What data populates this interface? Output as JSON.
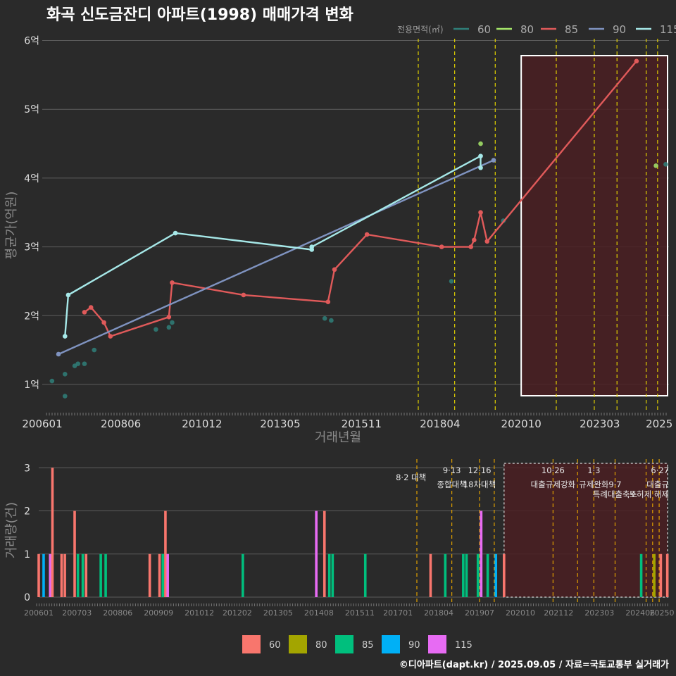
{
  "title": "화곡 신도금잔디 아파트(1998) 매매가격 변화",
  "credit": "©디아파트(dapt.kr) / 2025.09.05 / 자료=국토교통부 실거래가",
  "colors": {
    "bg": "#2a2a2a",
    "grid": "#5c5c5c",
    "policy_line": "#e0d000",
    "shade_fill": "#4a1f22",
    "sz60": "#2f7f79",
    "sz80": "#a6e86a",
    "sz85": "#e05a5a",
    "sz90": "#7f93c0",
    "sz115": "#a6e8e8",
    "bar60": "#f8766d",
    "bar80": "#a3a500",
    "bar85": "#00bf7d",
    "bar90": "#00b0f6",
    "bar115": "#e76bf3"
  },
  "chart_data": [
    {
      "type": "line",
      "title": "화곡 신도금잔디 아파트(1998) 매매가격 변화",
      "xlabel": "거래년월",
      "ylabel": "평균가(억원)",
      "xlim": [
        2006.0,
        2025.3
      ],
      "ylim": [
        0.6,
        6.2
      ],
      "x_ticks": [
        {
          "label": "200601",
          "x": 2006.0
        },
        {
          "label": "200806",
          "x": 2008.42
        },
        {
          "label": "201012",
          "x": 2010.92
        },
        {
          "label": "201305",
          "x": 2013.33
        },
        {
          "label": "201511",
          "x": 2015.83
        },
        {
          "label": "201804",
          "x": 2018.25
        },
        {
          "label": "202010",
          "x": 2020.75
        },
        {
          "label": "202303",
          "x": 2023.17
        },
        {
          "label": "2025",
          "x": 2025.0
        }
      ],
      "y_ticks": [
        {
          "label": "1억",
          "y": 1
        },
        {
          "label": "2억",
          "y": 2
        },
        {
          "label": "3억",
          "y": 3
        },
        {
          "label": "4억",
          "y": 4
        },
        {
          "label": "5억",
          "y": 5
        },
        {
          "label": "6억",
          "y": 6
        }
      ],
      "legend": {
        "title": "전용면적(㎡)",
        "position": "top-right",
        "entries": [
          "60",
          "80",
          "85",
          "90",
          "115"
        ]
      },
      "series": [
        {
          "name": "60",
          "color_key": "sz60",
          "mode": "points",
          "points": [
            [
              2006.3,
              1.05
            ],
            [
              2006.7,
              0.83
            ],
            [
              2006.7,
              1.15
            ],
            [
              2007.0,
              1.27
            ],
            [
              2007.1,
              1.3
            ],
            [
              2007.3,
              1.3
            ],
            [
              2007.6,
              1.5
            ],
            [
              2009.5,
              1.8
            ],
            [
              2009.9,
              1.83
            ],
            [
              2010.0,
              1.9
            ],
            [
              2014.7,
              1.96
            ],
            [
              2014.9,
              1.93
            ],
            [
              2018.6,
              2.5
            ],
            [
              2020.2,
              3.38
            ],
            [
              2025.2,
              4.2
            ]
          ]
        },
        {
          "name": "80",
          "color_key": "sz80",
          "mode": "points",
          "points": [
            [
              2019.5,
              4.5
            ],
            [
              2024.9,
              4.18
            ]
          ]
        },
        {
          "name": "85",
          "color_key": "sz85",
          "mode": "line",
          "points": [
            [
              2007.3,
              2.05
            ],
            [
              2007.5,
              2.12
            ],
            [
              2007.9,
              1.9
            ],
            [
              2008.1,
              1.7
            ],
            [
              2009.9,
              1.98
            ],
            [
              2010.0,
              2.48
            ],
            [
              2012.2,
              2.3
            ],
            [
              2014.8,
              2.2
            ],
            [
              2015.0,
              2.67
            ],
            [
              2016.0,
              3.18
            ],
            [
              2018.3,
              3.0
            ],
            [
              2019.2,
              3.0
            ],
            [
              2019.3,
              3.1
            ],
            [
              2019.5,
              3.5
            ],
            [
              2019.7,
              3.08
            ],
            [
              2024.3,
              5.7
            ]
          ]
        },
        {
          "name": "90",
          "color_key": "sz90",
          "mode": "line",
          "points": [
            [
              2006.5,
              1.44
            ],
            [
              2019.9,
              4.26
            ]
          ]
        },
        {
          "name": "115",
          "color_key": "sz115",
          "mode": "line",
          "points": [
            [
              2006.7,
              1.7
            ],
            [
              2006.8,
              2.3
            ],
            [
              2010.1,
              3.2
            ],
            [
              2014.3,
              2.96
            ],
            [
              2014.3,
              3.0
            ],
            [
              2019.5,
              4.32
            ],
            [
              2019.5,
              4.15
            ]
          ]
        }
      ],
      "policy_lines_x": [
        2017.58,
        2018.7,
        2019.95,
        2021.83,
        2023.0,
        2023.7,
        2024.6,
        2024.95
      ],
      "shaded_range_x": [
        2020.75,
        2025.3
      ]
    },
    {
      "type": "bar",
      "ylabel": "거래량(건)",
      "xlim": [
        2006.0,
        2025.3
      ],
      "ylim": [
        0,
        3.2
      ],
      "x_ticks": [
        {
          "label": "200601",
          "x": 2006.0
        },
        {
          "label": "200703",
          "x": 2007.17
        },
        {
          "label": "200806",
          "x": 2008.42
        },
        {
          "label": "200909",
          "x": 2009.67
        },
        {
          "label": "201012",
          "x": 2010.92
        },
        {
          "label": "201202",
          "x": 2012.08
        },
        {
          "label": "201305",
          "x": 2013.33
        },
        {
          "label": "201408",
          "x": 2014.58
        },
        {
          "label": "201511",
          "x": 2015.83
        },
        {
          "label": "201701",
          "x": 2017.0
        },
        {
          "label": "201804",
          "x": 2018.25
        },
        {
          "label": "201907",
          "x": 2019.5
        },
        {
          "label": "202010",
          "x": 2020.75
        },
        {
          "label": "202112",
          "x": 2021.92
        },
        {
          "label": "202303",
          "x": 2023.17
        },
        {
          "label": "202406",
          "x": 2024.42
        },
        {
          "label": "20250",
          "x": 2025.3
        }
      ],
      "y_ticks": [
        {
          "label": "0",
          "y": 0
        },
        {
          "label": "1",
          "y": 1
        },
        {
          "label": "2",
          "y": 2
        },
        {
          "label": "3",
          "y": 3
        }
      ],
      "legend": {
        "position": "bottom",
        "entries": [
          "60",
          "80",
          "85",
          "90",
          "115"
        ]
      },
      "bars": [
        {
          "x": 2006.0,
          "size": "60",
          "count": 1
        },
        {
          "x": 2006.15,
          "size": "90",
          "count": 1
        },
        {
          "x": 2006.35,
          "size": "115",
          "count": 1
        },
        {
          "x": 2006.42,
          "size": "60",
          "count": 3
        },
        {
          "x": 2006.7,
          "size": "60",
          "count": 1
        },
        {
          "x": 2006.8,
          "size": "60",
          "count": 1
        },
        {
          "x": 2007.1,
          "size": "60",
          "count": 2
        },
        {
          "x": 2007.2,
          "size": "85",
          "count": 1
        },
        {
          "x": 2007.35,
          "size": "85",
          "count": 1
        },
        {
          "x": 2007.45,
          "size": "60",
          "count": 1
        },
        {
          "x": 2007.9,
          "size": "85",
          "count": 1
        },
        {
          "x": 2008.05,
          "size": "85",
          "count": 1
        },
        {
          "x": 2009.4,
          "size": "60",
          "count": 1
        },
        {
          "x": 2009.7,
          "size": "60",
          "count": 1
        },
        {
          "x": 2009.8,
          "size": "85",
          "count": 1
        },
        {
          "x": 2009.88,
          "size": "60",
          "count": 2
        },
        {
          "x": 2009.95,
          "size": "115",
          "count": 1
        },
        {
          "x": 2012.25,
          "size": "85",
          "count": 1
        },
        {
          "x": 2014.5,
          "size": "115",
          "count": 2
        },
        {
          "x": 2014.75,
          "size": "60",
          "count": 2
        },
        {
          "x": 2014.9,
          "size": "85",
          "count": 1
        },
        {
          "x": 2015.0,
          "size": "85",
          "count": 1
        },
        {
          "x": 2016.0,
          "size": "85",
          "count": 1
        },
        {
          "x": 2018.0,
          "size": "60",
          "count": 1
        },
        {
          "x": 2018.45,
          "size": "85",
          "count": 1
        },
        {
          "x": 2019.0,
          "size": "85",
          "count": 1
        },
        {
          "x": 2019.1,
          "size": "85",
          "count": 1
        },
        {
          "x": 2019.45,
          "size": "85",
          "count": 1
        },
        {
          "x": 2019.55,
          "size": "115",
          "count": 2
        },
        {
          "x": 2019.75,
          "size": "85",
          "count": 1
        },
        {
          "x": 2020.0,
          "size": "90",
          "count": 1
        },
        {
          "x": 2020.25,
          "size": "60",
          "count": 1
        },
        {
          "x": 2024.45,
          "size": "85",
          "count": 1
        },
        {
          "x": 2024.85,
          "size": "80",
          "count": 1
        },
        {
          "x": 2025.05,
          "size": "60",
          "count": 1
        },
        {
          "x": 2025.25,
          "size": "60",
          "count": 1
        }
      ],
      "policy_lines_x": [
        2017.58,
        2018.65,
        2019.5,
        2019.95,
        2021.75,
        2022.5,
        2023.0,
        2023.65,
        2024.6,
        2024.8,
        2025.0
      ],
      "shaded_range_x": [
        2020.25,
        2025.3
      ],
      "annotations": [
        {
          "x": 2017.4,
          "level": 1,
          "text": "8·2 대책"
        },
        {
          "x": 2018.65,
          "level": 0,
          "text": "9·13"
        },
        {
          "x": 2018.65,
          "level": 2,
          "text": "종합대책"
        },
        {
          "x": 2019.5,
          "level": 0,
          "text": "12·16"
        },
        {
          "x": 2019.5,
          "level": 2,
          "text": "18차대책"
        },
        {
          "x": 2021.75,
          "level": 0,
          "text": "10·26"
        },
        {
          "x": 2021.75,
          "level": 2,
          "text": "대출규제강화"
        },
        {
          "x": 2023.0,
          "level": 0,
          "text": "1·3"
        },
        {
          "x": 2023.0,
          "level": 2,
          "text": "규제완화"
        },
        {
          "x": 2023.65,
          "level": 2,
          "text": "9·7"
        },
        {
          "x": 2023.65,
          "level": 3,
          "text": "특례대출축소"
        },
        {
          "x": 2024.75,
          "level": 3,
          "text": "토허제 해제"
        },
        {
          "x": 2025.0,
          "level": 0,
          "text": "6·27"
        },
        {
          "x": 2025.0,
          "level": 2,
          "text": "대출규"
        }
      ]
    }
  ]
}
